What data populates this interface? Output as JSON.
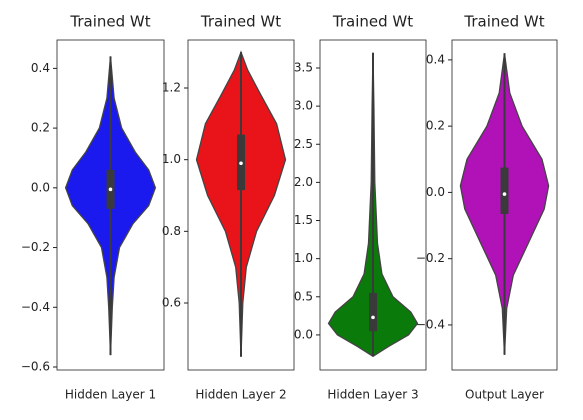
{
  "chart_data": [
    {
      "type": "violin",
      "title": "Trained Wt",
      "categories": [
        "Hidden Layer 1"
      ],
      "color": "#1a1aef",
      "ylim": [
        -0.61,
        0.495
      ],
      "yticks": [
        {
          "value": -0.6,
          "label": "−0.6"
        },
        {
          "value": -0.4,
          "label": "−0.4"
        },
        {
          "value": -0.2,
          "label": "−0.2"
        },
        {
          "value": 0,
          "label": "0.0"
        },
        0.2,
        0.4
      ],
      "min": -0.56,
      "q1": -0.07,
      "median": -0.005,
      "q3": 0.06,
      "max": 0.44,
      "density": {
        "y": [
          -0.56,
          -0.4,
          -0.3,
          -0.2,
          -0.12,
          -0.06,
          0,
          0.06,
          0.12,
          0.2,
          0.3,
          0.44
        ],
        "width": [
          0,
          0.04,
          0.08,
          0.2,
          0.5,
          0.85,
          1,
          0.85,
          0.55,
          0.25,
          0.08,
          0
        ]
      }
    },
    {
      "type": "violin",
      "title": "Trained Wt",
      "categories": [
        "Hidden Layer 2"
      ],
      "color": "#e8141a",
      "ylim": [
        0.413,
        1.334
      ],
      "yticks": [
        0.6,
        0.8,
        {
          "value": 1,
          "label": "1.0"
        },
        1.2
      ],
      "min": 0.45,
      "q1": 0.915,
      "median": 0.99,
      "q3": 1.07,
      "max": 1.3,
      "density": {
        "y": [
          0.45,
          0.6,
          0.7,
          0.8,
          0.9,
          1,
          1.1,
          1.18,
          1.25,
          1.3
        ],
        "width": [
          0,
          0.04,
          0.12,
          0.35,
          0.75,
          1,
          0.8,
          0.45,
          0.15,
          0
        ]
      }
    },
    {
      "type": "violin",
      "title": "Trained Wt",
      "categories": [
        "Hidden Layer 3"
      ],
      "color": "#0a7a0a",
      "ylim": [
        -0.46,
        3.867
      ],
      "yticks": [
        {
          "value": 0,
          "label": "0.0"
        },
        0.5,
        {
          "value": 1,
          "label": "1.0"
        },
        1.5,
        {
          "value": 2,
          "label": "2.0"
        },
        2.5,
        {
          "value": 3,
          "label": "3.0"
        },
        3.5
      ],
      "min": -0.28,
      "q1": 0.05,
      "median": 0.23,
      "q3": 0.55,
      "max": 3.7,
      "density": {
        "y": [
          -0.28,
          -0.15,
          0,
          0.15,
          0.3,
          0.5,
          0.8,
          1.2,
          2,
          3,
          3.7
        ],
        "width": [
          0,
          0.35,
          0.8,
          1,
          0.85,
          0.45,
          0.2,
          0.1,
          0.04,
          0.02,
          0
        ]
      }
    },
    {
      "type": "violin",
      "title": "Trained Wt",
      "categories": [
        "Output Layer"
      ],
      "color": "#b012b8",
      "ylim": [
        -0.536,
        0.46
      ],
      "yticks": [
        {
          "value": -0.4,
          "label": "−0.4"
        },
        {
          "value": -0.2,
          "label": "−0.2"
        },
        {
          "value": 0,
          "label": "0.0"
        },
        0.2,
        0.4
      ],
      "min": -0.49,
      "q1": -0.065,
      "median": -0.005,
      "q3": 0.075,
      "max": 0.42,
      "density": {
        "y": [
          -0.49,
          -0.35,
          -0.25,
          -0.15,
          -0.05,
          0.02,
          0.1,
          0.2,
          0.3,
          0.42
        ],
        "width": [
          0,
          0.05,
          0.2,
          0.55,
          0.9,
          1,
          0.85,
          0.4,
          0.12,
          0
        ]
      }
    }
  ]
}
